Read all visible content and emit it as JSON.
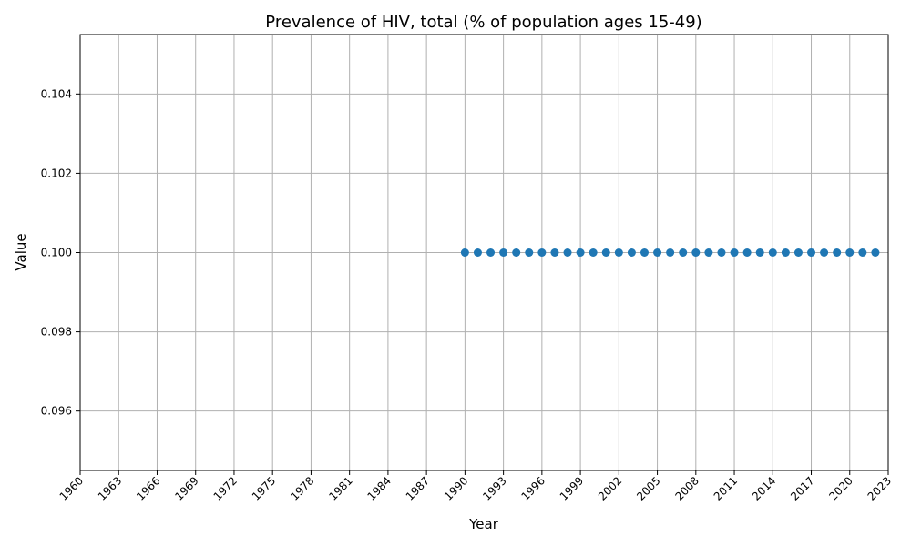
{
  "chart_data": {
    "type": "scatter",
    "title": "Prevalence of HIV, total (% of population ages 15-49)",
    "xlabel": "Year",
    "ylabel": "Value",
    "xlim": [
      1960,
      2023
    ],
    "ylim": [
      0.0945,
      0.1055
    ],
    "x_ticks": [
      1960,
      1963,
      1966,
      1969,
      1972,
      1975,
      1978,
      1981,
      1984,
      1987,
      1990,
      1993,
      1996,
      1999,
      2002,
      2005,
      2008,
      2011,
      2014,
      2017,
      2020,
      2023
    ],
    "y_ticks": [
      "0.096",
      "0.098",
      "0.100",
      "0.102",
      "0.104"
    ],
    "grid": true,
    "series": [
      {
        "color": "#1f77b4",
        "x": [
          1990,
          1991,
          1992,
          1993,
          1994,
          1995,
          1996,
          1997,
          1998,
          1999,
          2000,
          2001,
          2002,
          2003,
          2004,
          2005,
          2006,
          2007,
          2008,
          2009,
          2010,
          2011,
          2012,
          2013,
          2014,
          2015,
          2016,
          2017,
          2018,
          2019,
          2020,
          2021,
          2022
        ],
        "y": [
          0.1,
          0.1,
          0.1,
          0.1,
          0.1,
          0.1,
          0.1,
          0.1,
          0.1,
          0.1,
          0.1,
          0.1,
          0.1,
          0.1,
          0.1,
          0.1,
          0.1,
          0.1,
          0.1,
          0.1,
          0.1,
          0.1,
          0.1,
          0.1,
          0.1,
          0.1,
          0.1,
          0.1,
          0.1,
          0.1,
          0.1,
          0.1,
          0.1
        ]
      }
    ]
  }
}
